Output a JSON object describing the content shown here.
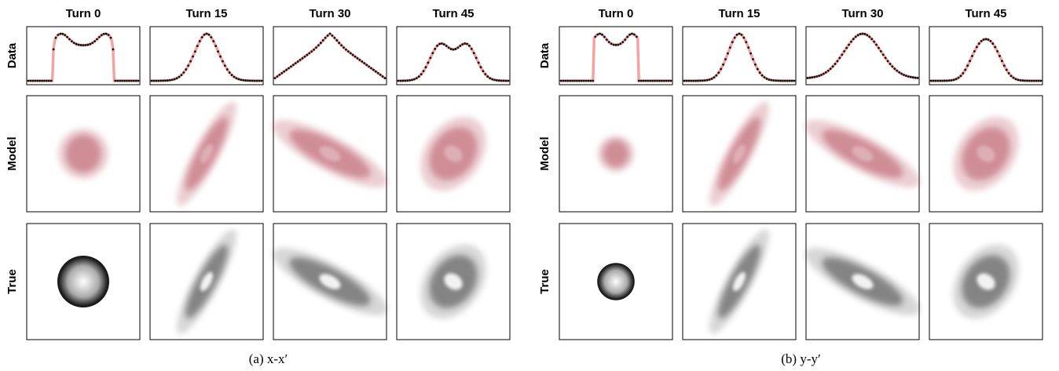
{
  "panels": [
    {
      "columns": [
        "Turn 0",
        "Turn 15",
        "Turn 30",
        "Turn 45"
      ],
      "rows": [
        "Data",
        "Model",
        "True"
      ],
      "caption": "(a) x-x′"
    },
    {
      "columns": [
        "Turn 0",
        "Turn 15",
        "Turn 30",
        "Turn 45"
      ],
      "rows": [
        "Data",
        "Model",
        "True"
      ],
      "caption": "(b) y-y′"
    }
  ]
}
